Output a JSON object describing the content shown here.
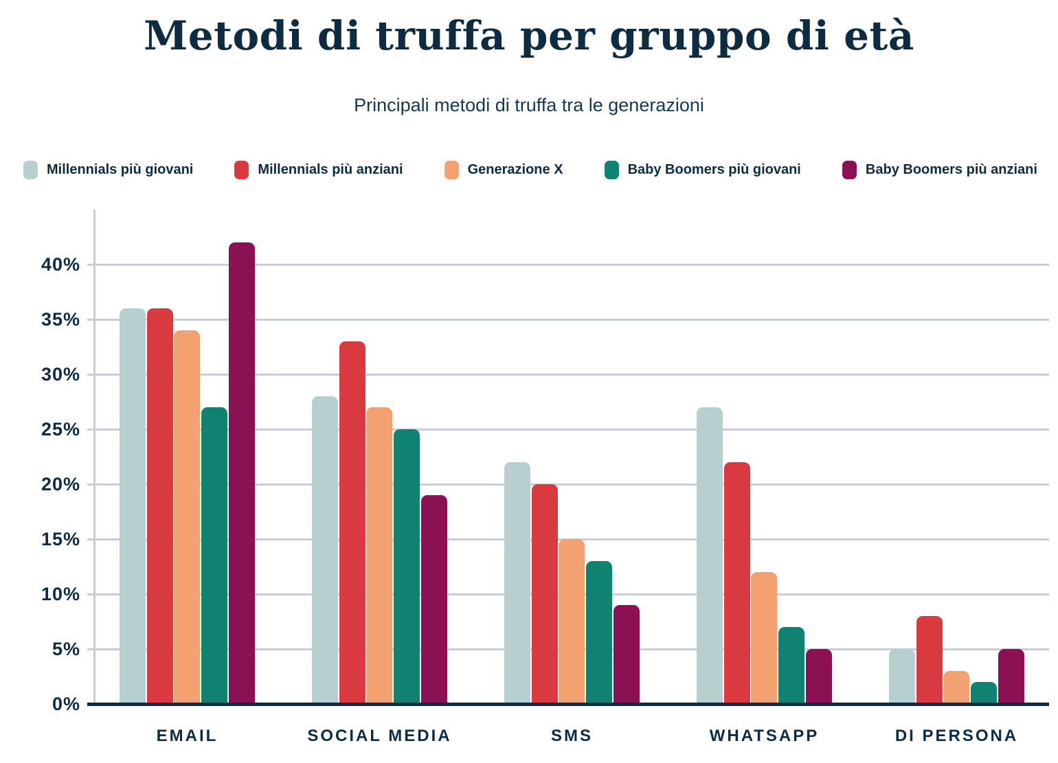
{
  "header": {
    "title": "Metodi di truffa per gruppo di età",
    "subtitle": "Principali metodi di truffa tra le generazioni"
  },
  "colors": {
    "text_navy": "#0e2b40",
    "gridline": "#c9cdd4",
    "background": "#ffffff"
  },
  "chart_data": {
    "type": "bar",
    "title": "Metodi di truffa per gruppo di età",
    "subtitle": "Principali metodi di truffa tra le generazioni",
    "categories": [
      "EMAIL",
      "SOCIAL MEDIA",
      "SMS",
      "WHATSAPP",
      "DI PERSONA"
    ],
    "series": [
      {
        "name": "Millennials più giovani",
        "color": "#b8cfd0",
        "values": [
          36,
          28,
          22,
          27,
          5
        ]
      },
      {
        "name": "Millennials più anziani",
        "color": "#d93a40",
        "values": [
          36,
          33,
          20,
          22,
          8
        ]
      },
      {
        "name": "Generazione X",
        "color": "#f4a172",
        "values": [
          34,
          27,
          15,
          12,
          3
        ]
      },
      {
        "name": "Baby Boomers più giovani",
        "color": "#118272",
        "values": [
          27,
          25,
          13,
          7,
          2
        ]
      },
      {
        "name": "Baby Boomers più anziani",
        "color": "#8a1254",
        "values": [
          42,
          19,
          9,
          5,
          5
        ]
      }
    ],
    "y_ticks": [
      "0%",
      "5%",
      "10%",
      "15%",
      "20%",
      "25%",
      "30%",
      "35%",
      "40%"
    ],
    "y_tick_step_pct": 5,
    "ylim": [
      0,
      45
    ],
    "ylabel": "",
    "xlabel": "",
    "grid": "horizontal",
    "legend_position": "top"
  }
}
